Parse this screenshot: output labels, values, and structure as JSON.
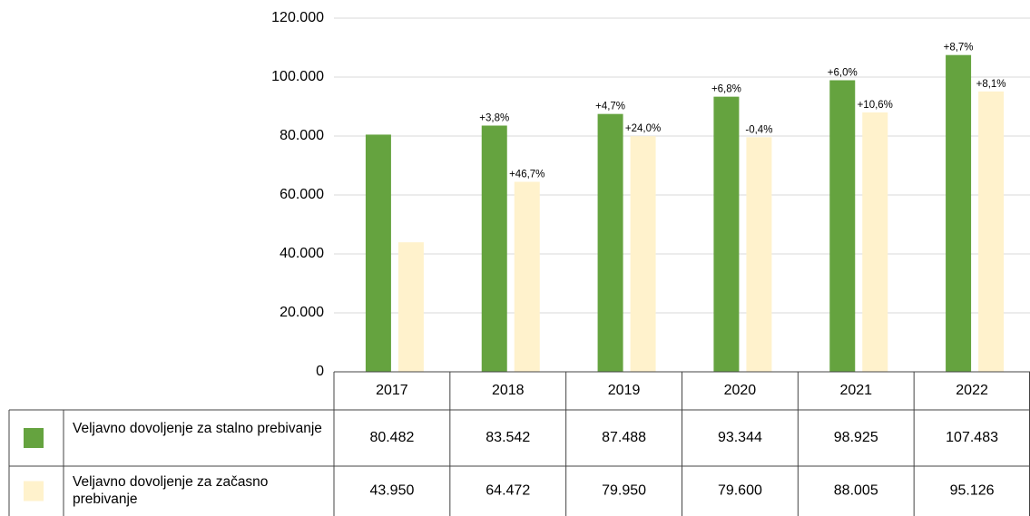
{
  "chart_data": {
    "type": "bar",
    "categories": [
      "2017",
      "2018",
      "2019",
      "2020",
      "2021",
      "2022"
    ],
    "series": [
      {
        "name": "Veljavno dovoljenje za stalno prebivanje",
        "color": "#65a33f",
        "values": [
          80482,
          83542,
          87488,
          93344,
          98925,
          107483
        ],
        "value_labels": [
          "80.482",
          "83.542",
          "87.488",
          "93.344",
          "98.925",
          "107.483"
        ],
        "annotations": [
          null,
          "+3,8%",
          "+4,7%",
          "+6,8%",
          "+6,0%",
          "+8,7%"
        ]
      },
      {
        "name": "Veljavno dovoljenje za začasno prebivanje",
        "color": "#fff2cc",
        "values": [
          43950,
          64472,
          79950,
          79600,
          88005,
          95126
        ],
        "value_labels": [
          "43.950",
          "64.472",
          "79.950",
          "79.600",
          "88.005",
          "95.126"
        ],
        "annotations": [
          null,
          "+46,7%",
          "+24,0%",
          "-0,4%",
          "+10,6%",
          "+8,1%"
        ]
      }
    ],
    "ylim": [
      0,
      120000
    ],
    "yticks": [
      0,
      {
        "value": 20000,
        "label": "20.000"
      },
      {
        "value": 40000,
        "label": "40.000"
      },
      {
        "value": 60000,
        "label": "60.000"
      },
      {
        "value": 80000,
        "label": "80.000"
      },
      {
        "value": 100000,
        "label": "100.000"
      },
      {
        "value": 120000,
        "label": "120.000"
      }
    ],
    "grid": true
  }
}
